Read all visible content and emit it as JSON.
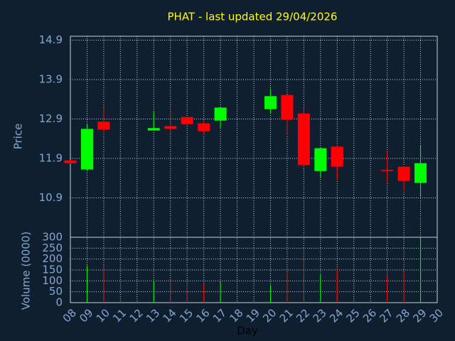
{
  "chart_data": {
    "type": "candlestick",
    "title": "PHAT - last updated 29/04/2026",
    "xlabel": "Day",
    "ylabel": "Price",
    "categories": [
      "08",
      "09",
      "10",
      "11",
      "12",
      "13",
      "14",
      "15",
      "16",
      "17",
      "18",
      "19",
      "20",
      "21",
      "22",
      "23",
      "24",
      "25",
      "26",
      "27",
      "28",
      "29",
      "30"
    ],
    "open": [
      11.85,
      11.62,
      12.83,
      null,
      null,
      12.61,
      12.72,
      12.95,
      12.79,
      12.86,
      null,
      null,
      13.15,
      13.51,
      13.04,
      11.58,
      12.2,
      null,
      null,
      11.61,
      11.69,
      11.28,
      null
    ],
    "high": [
      11.86,
      12.76,
      13.19,
      null,
      null,
      13.1,
      13.1,
      12.96,
      12.86,
      13.2,
      null,
      null,
      13.67,
      13.52,
      13.19,
      12.17,
      12.21,
      null,
      null,
      12.07,
      11.7,
      12.23,
      null
    ],
    "low": [
      11.77,
      11.58,
      12.54,
      null,
      null,
      12.61,
      12.52,
      12.75,
      12.5,
      12.68,
      null,
      null,
      13.03,
      12.5,
      11.67,
      11.4,
      11.35,
      null,
      null,
      11.28,
      11.08,
      10.94,
      null
    ],
    "close": [
      11.78,
      12.65,
      12.63,
      null,
      null,
      12.67,
      12.65,
      12.77,
      12.59,
      13.19,
      null,
      null,
      13.48,
      12.88,
      11.73,
      12.16,
      11.69,
      null,
      null,
      11.58,
      11.33,
      11.78,
      null
    ],
    "ylim": [
      9.9,
      15.0
    ],
    "yticks": [
      10.9,
      11.9,
      12.9,
      13.9,
      14.9
    ],
    "up_color": "#00ff00",
    "down_color": "#ff0000",
    "grid": true,
    "volume": {
      "label": "Volume (0000)",
      "values": [
        null,
        170,
        150,
        null,
        null,
        100,
        105,
        60,
        85,
        95,
        null,
        null,
        80,
        145,
        210,
        130,
        155,
        null,
        null,
        125,
        145,
        300,
        null
      ],
      "ylim": [
        0,
        300
      ],
      "yticks": [
        0,
        50,
        100,
        150,
        200,
        250,
        300
      ]
    }
  }
}
